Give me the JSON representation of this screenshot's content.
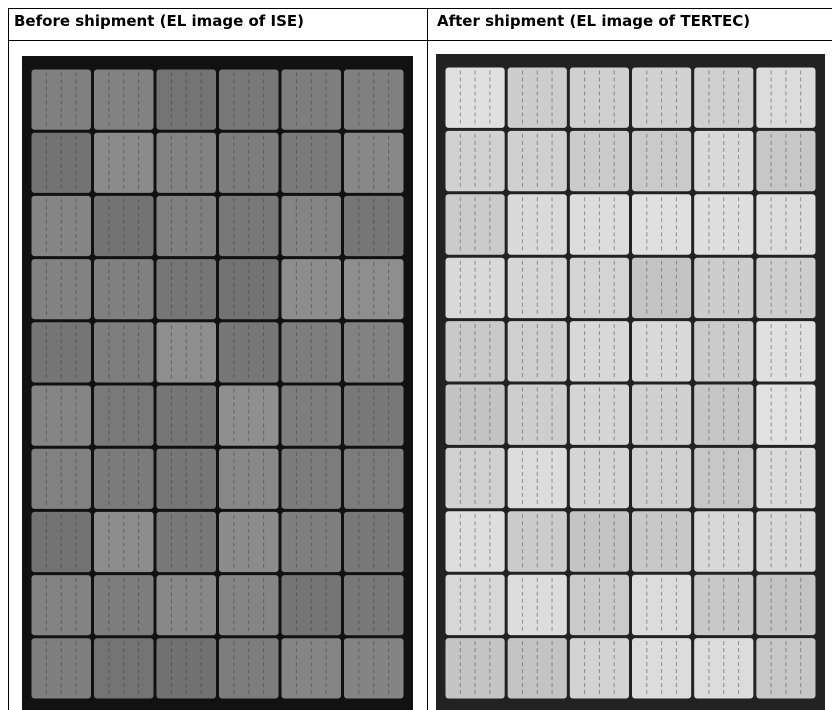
{
  "table": {
    "headers": [
      "Before shipment (EL image of ISE)",
      "After shipment (EL image of TERTEC)"
    ]
  }
}
